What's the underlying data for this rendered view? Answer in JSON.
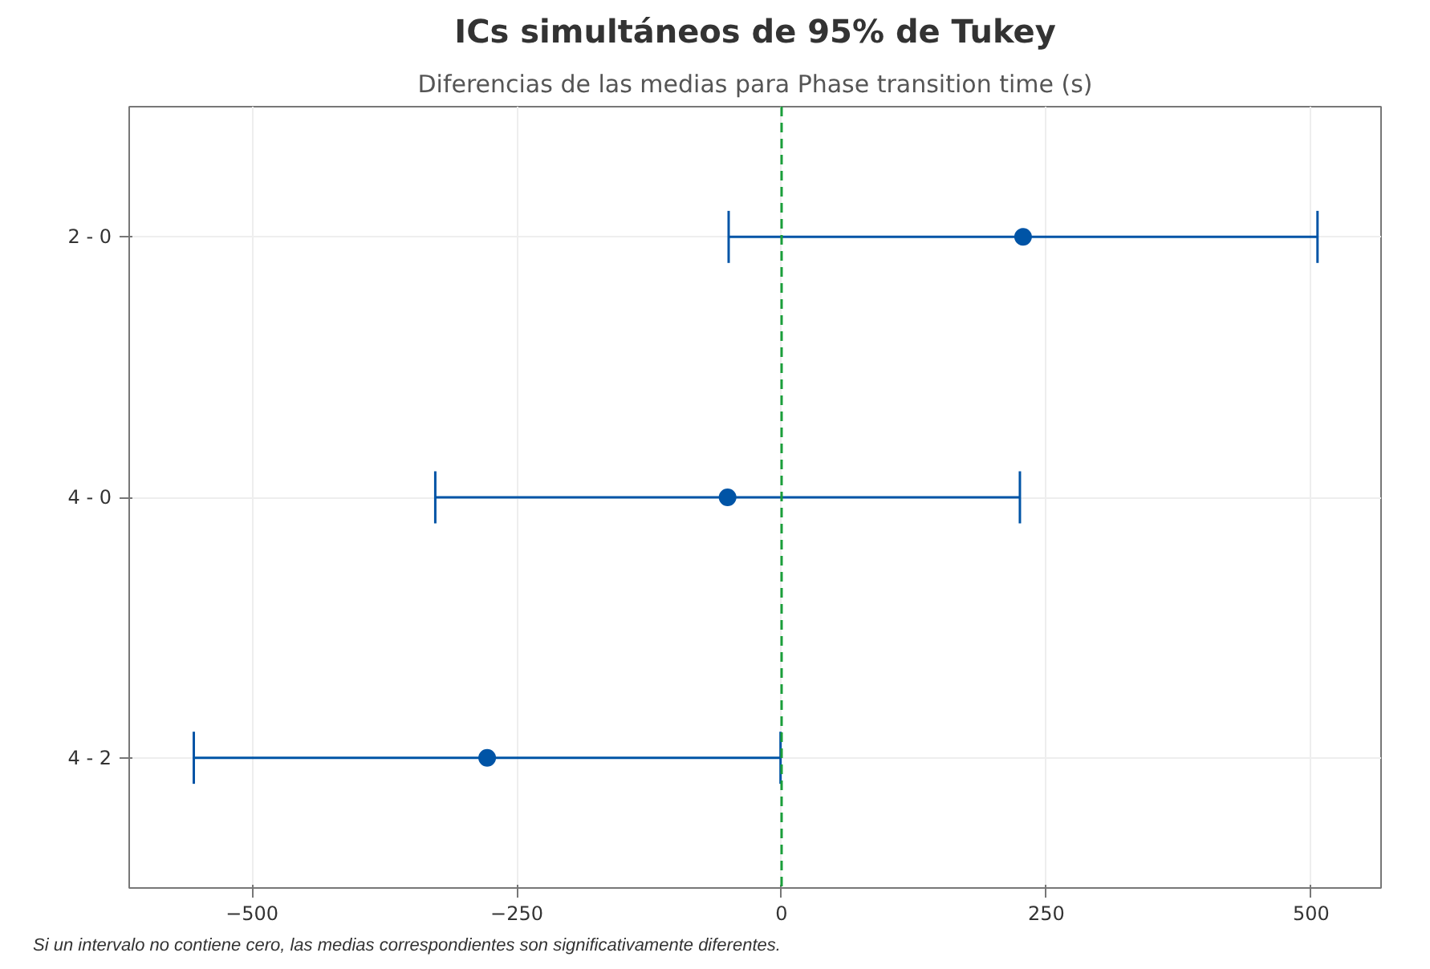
{
  "chart_data": {
    "type": "scatter",
    "orientation": "horizontal",
    "title": "ICs simultáneos de 95% de Tukey",
    "subtitle": "Diferencias de las medias para Phase transition time (s)",
    "categories": [
      "2 - 0",
      "4 - 0",
      "4 - 2"
    ],
    "values": [
      228,
      -51,
      -278
    ],
    "errors": [
      278,
      276,
      277
    ],
    "color": "#0054a6",
    "marker": "circle",
    "xlim": [
      -616,
      566
    ],
    "xticks": [
      -500,
      -250,
      0,
      250,
      500
    ],
    "grid": true,
    "ref_lines": [
      {
        "axis": "x",
        "value": 0,
        "color": "#1a9e3a",
        "line_style": "dashed"
      }
    ],
    "annotations": [
      "Si un intervalo no contiene cero, las medias correspondientes son significativamente diferentes."
    ]
  }
}
